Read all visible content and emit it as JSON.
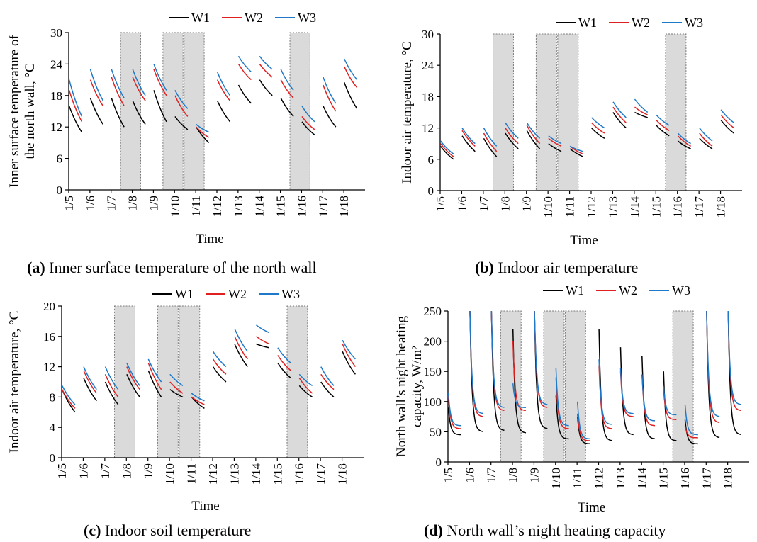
{
  "colors": {
    "W1": "#000000",
    "W2": "#e02020",
    "W3": "#1f78c8",
    "shade": "#dadada"
  },
  "legend": [
    "W1",
    "W2",
    "W3"
  ],
  "captions": [
    {
      "tag": "(a)",
      "text": "Inner surface temperature of the north wall"
    },
    {
      "tag": "(b)",
      "text": "Indoor air temperature"
    },
    {
      "tag": "(c)",
      "text": "Indoor soil temperature"
    },
    {
      "tag": "(d)",
      "text": "North wall’s night heating capacity"
    }
  ],
  "chart_data": [
    {
      "type": "line",
      "xlabel": "Time",
      "ylabel": "Inner surface temperature of the north wall, °C",
      "x_ticks": [
        "1/5",
        "1/6",
        "1/7",
        "1/8",
        "1/9",
        "1/10",
        "1/11",
        "1/12",
        "1/13",
        "1/14",
        "1/15",
        "1/16",
        "1/17",
        "1/18"
      ],
      "ylim": [
        0,
        30
      ],
      "yticks": [
        0,
        6,
        12,
        18,
        24,
        30
      ],
      "shaded_days": [
        2,
        4,
        5,
        10
      ],
      "legend_position": "top",
      "nights": [
        {
          "W1": [
            16,
            11
          ],
          "W2": [
            19,
            13
          ],
          "W3": [
            21,
            14
          ]
        },
        {
          "W1": [
            17.5,
            12.5
          ],
          "W2": [
            21,
            16
          ],
          "W3": [
            23,
            17
          ]
        },
        {
          "W1": [
            17.5,
            12
          ],
          "W2": [
            21.5,
            16
          ],
          "W3": [
            23,
            17.5
          ]
        },
        {
          "W1": [
            17,
            12.5
          ],
          "W2": [
            21.5,
            17
          ],
          "W3": [
            23,
            18
          ]
        },
        {
          "W1": [
            19,
            13
          ],
          "W2": [
            23,
            18
          ],
          "W3": [
            24,
            19
          ]
        },
        {
          "W1": [
            14,
            11.5
          ],
          "W2": [
            18,
            14
          ],
          "W3": [
            19,
            15.5
          ]
        },
        {
          "W1": [
            12,
            9
          ],
          "W2": [
            12,
            10
          ],
          "W3": [
            12.5,
            11
          ]
        },
        {
          "W1": [
            17,
            13
          ],
          "W2": [
            21,
            17
          ],
          "W3": [
            22.5,
            18
          ]
        },
        {
          "W1": [
            20,
            16.5
          ],
          "W2": [
            24,
            21
          ],
          "W3": [
            25.5,
            22.5
          ]
        },
        {
          "W1": [
            21,
            18
          ],
          "W2": [
            24,
            21.5
          ],
          "W3": [
            25.5,
            23
          ]
        },
        {
          "W1": [
            17.5,
            14
          ],
          "W2": [
            21,
            17.5
          ],
          "W3": [
            23,
            19
          ]
        },
        {
          "W1": [
            13,
            10.5
          ],
          "W2": [
            14,
            11.5
          ],
          "W3": [
            16,
            13
          ]
        },
        {
          "W1": [
            16,
            12
          ],
          "W2": [
            20,
            15
          ],
          "W3": [
            21.5,
            16.5
          ]
        },
        {
          "W1": [
            20.5,
            15.5
          ],
          "W2": [
            23.5,
            19.5
          ],
          "W3": [
            25,
            21
          ]
        }
      ]
    },
    {
      "type": "line",
      "xlabel": "Time",
      "ylabel": "Indoor air temperature, °C",
      "x_ticks": [
        "1/5",
        "1/6",
        "1/7",
        "1/8",
        "1/9",
        "1/10",
        "1/11",
        "1/12",
        "1/13",
        "1/14",
        "1/15",
        "1/16",
        "1/17",
        "1/18"
      ],
      "ylim": [
        0,
        30
      ],
      "yticks": [
        0,
        6,
        12,
        18,
        24,
        30
      ],
      "shaded_days": [
        2,
        4,
        5,
        10
      ],
      "legend_position": "top",
      "nights": [
        {
          "W1": [
            8.5,
            6
          ],
          "W2": [
            9,
            6.5
          ],
          "W3": [
            9.5,
            7
          ]
        },
        {
          "W1": [
            10.5,
            7.5
          ],
          "W2": [
            11.5,
            8.5
          ],
          "W3": [
            12,
            9
          ]
        },
        {
          "W1": [
            10,
            6.5
          ],
          "W2": [
            11,
            7.5
          ],
          "W3": [
            12,
            8.5
          ]
        },
        {
          "W1": [
            11,
            8
          ],
          "W2": [
            12,
            9
          ],
          "W3": [
            13,
            10
          ]
        },
        {
          "W1": [
            11.5,
            8
          ],
          "W2": [
            12.5,
            9
          ],
          "W3": [
            13,
            10
          ]
        },
        {
          "W1": [
            9,
            7.5
          ],
          "W2": [
            10,
            8.5
          ],
          "W3": [
            10.5,
            9
          ]
        },
        {
          "W1": [
            8,
            6.5
          ],
          "W2": [
            8.5,
            7
          ],
          "W3": [
            8.5,
            7.5
          ]
        },
        {
          "W1": [
            12,
            10
          ],
          "W2": [
            13,
            11
          ],
          "W3": [
            14,
            12
          ]
        },
        {
          "W1": [
            15,
            12
          ],
          "W2": [
            16,
            13
          ],
          "W3": [
            17,
            14
          ]
        },
        {
          "W1": [
            15,
            14
          ],
          "W2": [
            16,
            14.5
          ],
          "W3": [
            17.5,
            15
          ]
        },
        {
          "W1": [
            12.5,
            10.5
          ],
          "W2": [
            13.5,
            11.5
          ],
          "W3": [
            14.5,
            12.5
          ]
        },
        {
          "W1": [
            9.5,
            8
          ],
          "W2": [
            10.5,
            8.5
          ],
          "W3": [
            11,
            9
          ]
        },
        {
          "W1": [
            10,
            8
          ],
          "W2": [
            11,
            8.5
          ],
          "W3": [
            12,
            9.5
          ]
        },
        {
          "W1": [
            13.5,
            11
          ],
          "W2": [
            14.5,
            12
          ],
          "W3": [
            15.5,
            13
          ]
        }
      ]
    },
    {
      "type": "line",
      "xlabel": "Time",
      "ylabel": "Indoor air temperature, °C",
      "x_ticks": [
        "1/5",
        "1/6",
        "1/7",
        "1/8",
        "1/9",
        "1/10",
        "1/11",
        "1/12",
        "1/13",
        "1/14",
        "1/15",
        "1/16",
        "1/17",
        "1/18"
      ],
      "ylim": [
        0,
        20
      ],
      "yticks": [
        0,
        4,
        8,
        12,
        16,
        20
      ],
      "shaded_days": [
        2,
        4,
        5,
        10
      ],
      "legend_position": "top",
      "nights": [
        {
          "W1": [
            9,
            6
          ],
          "W2": [
            9,
            6.5
          ],
          "W3": [
            9.5,
            7
          ]
        },
        {
          "W1": [
            10.5,
            7.5
          ],
          "W2": [
            11.5,
            8.5
          ],
          "W3": [
            12,
            9
          ]
        },
        {
          "W1": [
            10,
            7
          ],
          "W2": [
            11,
            8
          ],
          "W3": [
            12,
            9
          ]
        },
        {
          "W1": [
            11,
            8
          ],
          "W2": [
            12,
            9
          ],
          "W3": [
            12.5,
            9.5
          ]
        },
        {
          "W1": [
            11.5,
            8
          ],
          "W2": [
            12.5,
            9
          ],
          "W3": [
            13,
            10
          ]
        },
        {
          "W1": [
            9,
            8
          ],
          "W2": [
            10,
            8.5
          ],
          "W3": [
            11,
            9.5
          ]
        },
        {
          "W1": [
            8,
            6.5
          ],
          "W2": [
            8,
            7
          ],
          "W3": [
            8.5,
            7.5
          ]
        },
        {
          "W1": [
            12,
            10
          ],
          "W2": [
            13,
            11
          ],
          "W3": [
            14,
            12
          ]
        },
        {
          "W1": [
            15,
            12
          ],
          "W2": [
            16,
            13
          ],
          "W3": [
            17,
            14
          ]
        },
        {
          "W1": [
            15,
            14.5
          ],
          "W2": [
            16,
            15
          ],
          "W3": [
            17.5,
            16.5
          ]
        },
        {
          "W1": [
            12.5,
            10.5
          ],
          "W2": [
            13.5,
            11.5
          ],
          "W3": [
            14.5,
            12.5
          ]
        },
        {
          "W1": [
            9.5,
            8
          ],
          "W2": [
            10.5,
            8.5
          ],
          "W3": [
            11,
            9.5
          ]
        },
        {
          "W1": [
            10,
            8
          ],
          "W2": [
            11,
            9
          ],
          "W3": [
            12,
            9.5
          ]
        },
        {
          "W1": [
            14,
            11
          ],
          "W2": [
            15,
            12
          ],
          "W3": [
            15.5,
            13
          ]
        }
      ]
    },
    {
      "type": "line",
      "xlabel": "Time",
      "ylabel": "North wall’s night heating capacity, W/m²",
      "x_ticks": [
        "1/5",
        "1/6",
        "1/7",
        "1/8",
        "1/9",
        "1/10",
        "1/11",
        "1/12",
        "1/13",
        "1/14",
        "1/15",
        "1/16",
        "1/17",
        "1/18"
      ],
      "ylim": [
        0,
        250
      ],
      "yticks": [
        0,
        50,
        100,
        150,
        200,
        250
      ],
      "shaded_days": [
        2,
        4,
        5,
        10
      ],
      "legend_position": "top",
      "nights": [
        {
          "W1": [
            90,
            45
          ],
          "W2": [
            110,
            55
          ],
          "W3": [
            115,
            60
          ]
        },
        {
          "W1": [
            250,
            50
          ],
          "W2": [
            250,
            75
          ],
          "W3": [
            250,
            80
          ]
        },
        {
          "W1": [
            250,
            52
          ],
          "W2": [
            250,
            85
          ],
          "W3": [
            250,
            90
          ]
        },
        {
          "W1": [
            220,
            48
          ],
          "W2": [
            200,
            85
          ],
          "W3": [
            130,
            90
          ]
        },
        {
          "W1": [
            250,
            55
          ],
          "W2": [
            250,
            90
          ],
          "W3": [
            250,
            95
          ]
        },
        {
          "W1": [
            110,
            38
          ],
          "W2": [
            140,
            55
          ],
          "W3": [
            155,
            60
          ]
        },
        {
          "W1": [
            75,
            30
          ],
          "W2": [
            80,
            35
          ],
          "W3": [
            100,
            38
          ]
        },
        {
          "W1": [
            220,
            35
          ],
          "W2": [
            160,
            55
          ],
          "W3": [
            170,
            62
          ]
        },
        {
          "W1": [
            190,
            45
          ],
          "W2": [
            150,
            75
          ],
          "W3": [
            155,
            80
          ]
        },
        {
          "W1": [
            175,
            38
          ],
          "W2": [
            145,
            60
          ],
          "W3": [
            145,
            68
          ]
        },
        {
          "W1": [
            150,
            35
          ],
          "W2": [
            120,
            70
          ],
          "W3": [
            125,
            78
          ]
        },
        {
          "W1": [
            70,
            30
          ],
          "W2": [
            60,
            40
          ],
          "W3": [
            95,
            45
          ]
        },
        {
          "W1": [
            250,
            40
          ],
          "W2": [
            250,
            65
          ],
          "W3": [
            250,
            75
          ]
        },
        {
          "W1": [
            250,
            45
          ],
          "W2": [
            250,
            85
          ],
          "W3": [
            250,
            95
          ]
        }
      ]
    }
  ]
}
